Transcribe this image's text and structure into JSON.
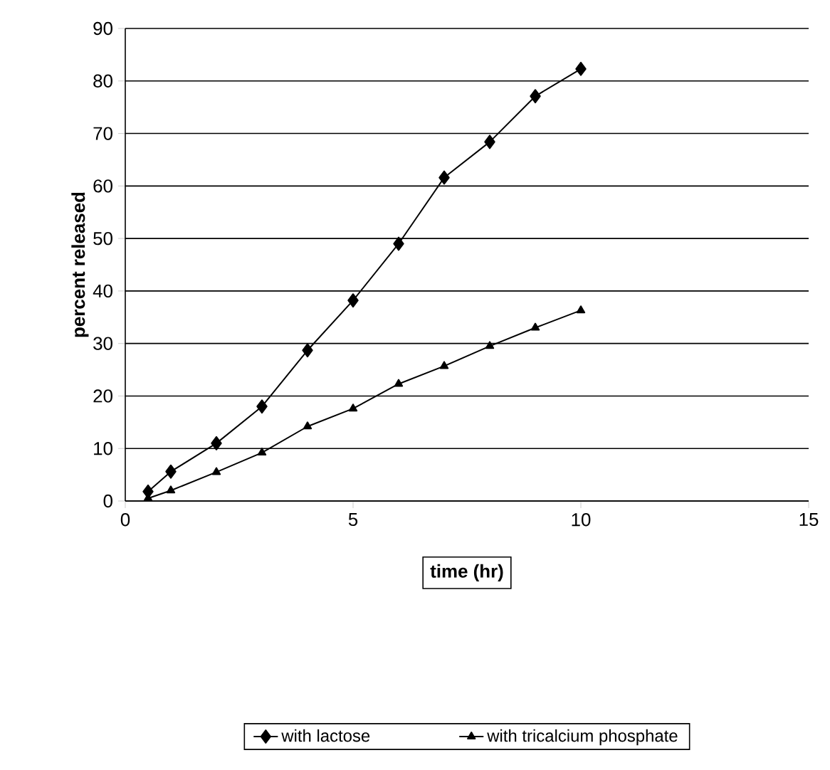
{
  "chart_data": {
    "type": "line",
    "xlabel": "time (hr)",
    "ylabel": "percent released",
    "xlim": [
      0,
      15
    ],
    "xticks": [
      0,
      5,
      10,
      15
    ],
    "ylim": [
      0,
      90
    ],
    "yticks": [
      0,
      10,
      20,
      30,
      40,
      50,
      60,
      70,
      80,
      90
    ],
    "grid": "y",
    "legend": "bottom",
    "series": [
      {
        "name": "with lactose",
        "color": "#000000",
        "marker": "diamond",
        "x": [
          0.5,
          1,
          2,
          3,
          4,
          5,
          6,
          7,
          8,
          9,
          10
        ],
        "values": [
          1.8,
          5.6,
          11,
          18,
          28.7,
          38.2,
          49,
          61.6,
          68.4,
          77.1,
          82.3
        ]
      },
      {
        "name": "with tricalcium phosphate",
        "color": "#000000",
        "marker": "triangle",
        "x": [
          0.5,
          1,
          2,
          3,
          4,
          5,
          6,
          7,
          8,
          9,
          10
        ],
        "values": [
          0.5,
          2,
          5.5,
          9.2,
          14.2,
          17.6,
          22.3,
          25.7,
          29.5,
          33,
          36.3
        ]
      }
    ]
  }
}
